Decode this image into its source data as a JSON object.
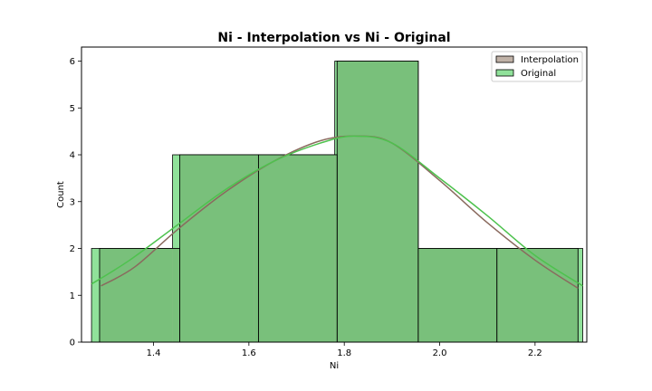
{
  "chart_data": {
    "type": "bar",
    "title": "Ni - Interpolation vs Ni - Original",
    "xlabel": "Ni",
    "ylabel": "Count",
    "xlim": [
      1.249,
      2.3085
    ],
    "ylim": [
      0,
      6.3
    ],
    "xticks": [
      "1.4",
      "1.6",
      "1.8",
      "2.0",
      "2.2"
    ],
    "yticks": [
      "0",
      "1",
      "2",
      "3",
      "4",
      "5",
      "6"
    ],
    "grid": false,
    "legend_position": "top-right",
    "series": [
      {
        "name": "Original",
        "color": "#90e19a",
        "bins": [
          {
            "x0": 1.27,
            "x1": 1.44,
            "count": 2
          },
          {
            "x0": 1.44,
            "x1": 1.61,
            "count": 4
          },
          {
            "x0": 1.61,
            "x1": 1.78,
            "count": 4
          },
          {
            "x0": 1.78,
            "x1": 1.955,
            "count": 6
          },
          {
            "x0": 1.955,
            "x1": 2.125,
            "count": 2
          },
          {
            "x0": 2.125,
            "x1": 2.3,
            "count": 2
          }
        ],
        "kde_color": "#4ec24e",
        "kde": [
          [
            1.27,
            1.24
          ],
          [
            1.35,
            1.75
          ],
          [
            1.45,
            2.5
          ],
          [
            1.55,
            3.25
          ],
          [
            1.65,
            3.85
          ],
          [
            1.75,
            4.25
          ],
          [
            1.82,
            4.4
          ],
          [
            1.9,
            4.25
          ],
          [
            2.0,
            3.5
          ],
          [
            2.1,
            2.7
          ],
          [
            2.2,
            1.85
          ],
          [
            2.3,
            1.2
          ]
        ]
      },
      {
        "name": "Interpolation",
        "color": "#c0b2a7",
        "bins": [
          {
            "x0": 1.287,
            "x1": 1.455,
            "count": 2
          },
          {
            "x0": 1.455,
            "x1": 1.62,
            "count": 4
          },
          {
            "x0": 1.62,
            "x1": 1.785,
            "count": 4
          },
          {
            "x0": 1.785,
            "x1": 1.955,
            "count": 6
          },
          {
            "x0": 1.955,
            "x1": 2.12,
            "count": 2
          },
          {
            "x0": 2.12,
            "x1": 2.29,
            "count": 2
          }
        ],
        "kde_color": "#8a6a5e",
        "kde": [
          [
            1.29,
            1.2
          ],
          [
            1.36,
            1.6
          ],
          [
            1.45,
            2.4
          ],
          [
            1.55,
            3.2
          ],
          [
            1.65,
            3.85
          ],
          [
            1.75,
            4.3
          ],
          [
            1.83,
            4.4
          ],
          [
            1.9,
            4.25
          ],
          [
            2.0,
            3.45
          ],
          [
            2.1,
            2.55
          ],
          [
            2.2,
            1.75
          ],
          [
            2.29,
            1.15
          ]
        ]
      }
    ]
  }
}
